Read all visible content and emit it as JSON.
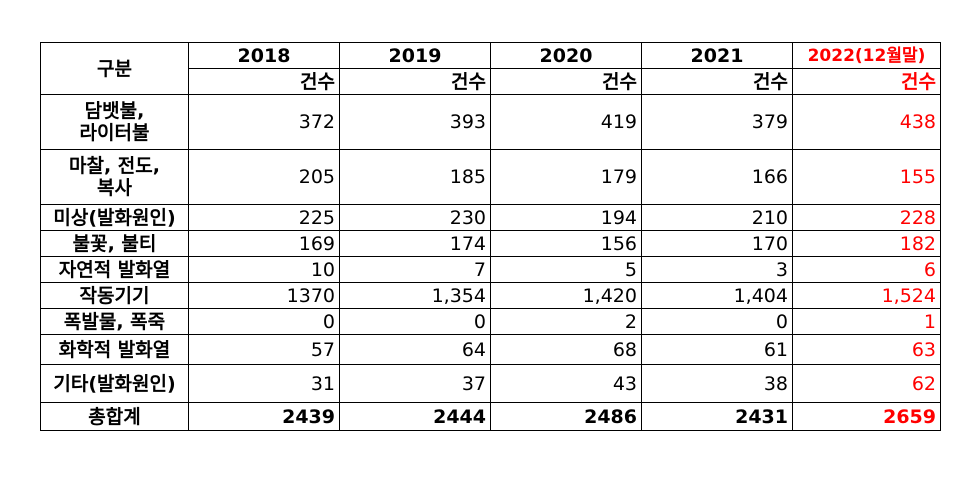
{
  "table": {
    "corner_label": "구분",
    "years": [
      "2018",
      "2019",
      "2020",
      "2021",
      "2022(12월말)"
    ],
    "unit_label": "건수",
    "rows": [
      {
        "label_lines": [
          "담뱃불,",
          "라이터불"
        ],
        "values": [
          "372",
          "393",
          "419",
          "379",
          "438"
        ]
      },
      {
        "label_lines": [
          "마찰, 전도,",
          "복사"
        ],
        "values": [
          "205",
          "185",
          "179",
          "166",
          "155"
        ]
      },
      {
        "label_lines": [
          "미상(발화원인)"
        ],
        "values": [
          "225",
          "230",
          "194",
          "210",
          "228"
        ]
      },
      {
        "label_lines": [
          "불꽃, 불티"
        ],
        "values": [
          "169",
          "174",
          "156",
          "170",
          "182"
        ]
      },
      {
        "label_lines": [
          "자연적 발화열"
        ],
        "values": [
          "10",
          "7",
          "5",
          "3",
          "6"
        ]
      },
      {
        "label_lines": [
          "작동기기"
        ],
        "values": [
          "1370",
          "1,354",
          "1,420",
          "1,404",
          "1,524"
        ]
      },
      {
        "label_lines": [
          "폭발물, 폭죽"
        ],
        "values": [
          "0",
          "0",
          "2",
          "0",
          "1"
        ]
      },
      {
        "label_lines": [
          "화학적 발화열"
        ],
        "values": [
          "57",
          "64",
          "68",
          "61",
          "63"
        ]
      },
      {
        "label_lines": [
          "기타(발화원인)"
        ],
        "values": [
          "31",
          "37",
          "43",
          "38",
          "62"
        ]
      }
    ],
    "total": {
      "label": "총합계",
      "values": [
        "2439",
        "2444",
        "2486",
        "2431",
        "2659"
      ]
    }
  },
  "colors": {
    "highlight": "#ff0000",
    "border": "#000000"
  }
}
